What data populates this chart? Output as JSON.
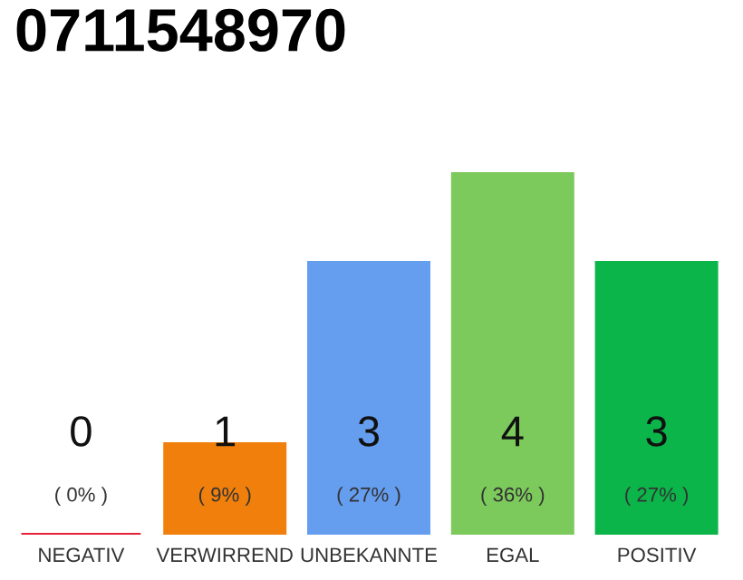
{
  "chart_data": {
    "type": "bar",
    "title": "0711548970",
    "categories": [
      "NEGATIV",
      "VERWIRREND",
      "UNBEKANNTE",
      "EGAL",
      "POSITIV"
    ],
    "values": [
      0,
      1,
      3,
      4,
      3
    ],
    "colors": [
      "#e8213a",
      "#f07f0c",
      "#659def",
      "#7cc95c",
      "#0bb54a"
    ],
    "value_labels": [
      "0\n( 0% )",
      "1\n( 9% )",
      "3\n( 27% )",
      "4\n( 36% )",
      "3\n( 27% )"
    ],
    "grid": false,
    "legend": false
  }
}
